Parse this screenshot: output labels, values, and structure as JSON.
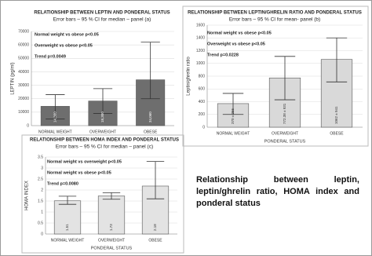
{
  "chart_data": [
    {
      "type": "bar",
      "title": "RELATIONSHIP BETWEEN LEPTIN AND PONDERAL STATUS",
      "subtitle": "Error bars – 95 % CI for median – panel (a)",
      "ylabel": "LEPTIN (pg/ml)",
      "annotations": [
        "Normal weight vs obese p<0.05",
        "Overweight vs obese p<0.05",
        "Trend p=0.0049"
      ],
      "categories": [
        "NORMAL WEIGHT",
        "OVERWEIGHT",
        "OBESE"
      ],
      "values": [
        14360,
        18300,
        34060
      ],
      "value_labels": [
        "14,360",
        "18,300",
        "34,060"
      ],
      "ci_low": [
        5000,
        9000,
        20000
      ],
      "ci_high": [
        23000,
        27500,
        62000
      ],
      "color": "#6e6e6e",
      "ylim": [
        0,
        70000
      ],
      "yticks": [
        0,
        10000,
        20000,
        30000,
        40000,
        50000,
        60000,
        70000
      ],
      "grid": true
    },
    {
      "type": "bar",
      "title": "RELATIONSHIP BETWEEN LEPTIN/GHRELIN RATIO AND PONDERAL STATUS",
      "subtitle": "Error bars – 95 % CI for mean- panel (b)",
      "ylabel": "Leptin/ghrelin ratio",
      "xlabel": "PONDERAL STATUS",
      "annotations": [
        "Normal weight vs obese p<0.05",
        "Overweight vs obese p<0.05",
        "Trend p=0.0228"
      ],
      "categories": [
        "NORMAL WEIGHT",
        "OVERWEIGHT",
        "OBESE"
      ],
      "values": [
        370,
        772.38,
        1062
      ],
      "value_labels": [
        "370 ± 255",
        "772.38 ± 931",
        "1062 ± 941"
      ],
      "ci_low": [
        200,
        430,
        710
      ],
      "ci_high": [
        530,
        1110,
        1400
      ],
      "color": "#d9d9d9",
      "ylim": [
        0,
        1600
      ],
      "yticks": [
        0,
        200,
        400,
        600,
        800,
        1000,
        1200,
        1400,
        1600
      ],
      "grid": true
    },
    {
      "type": "bar",
      "title": "RELATIONSHIP BETWEEN HOMA INDEX AND PONDERAL STATUS",
      "subtitle": "Error bars – 95 % CI for median – panel (c)",
      "ylabel": "HOMA INDEX",
      "xlabel": "PONDERAL STATUS",
      "annotations": [
        "Normal weight vs overweight p<0.05",
        "Normal weight vs obese p<0.05",
        "Trend p=0.0080"
      ],
      "categories": [
        "NORMAL WEIGHT",
        "OVERWEIGHT",
        "OBESE"
      ],
      "values": [
        1.51,
        1.73,
        2.18
      ],
      "ci_low": [
        1.35,
        1.58,
        1.6
      ],
      "ci_high": [
        1.72,
        1.88,
        3.3
      ],
      "color": "#e3e3e3",
      "ylim": [
        0,
        3.5
      ],
      "yticks": [
        0,
        0.5,
        1,
        1.5,
        2,
        2.5,
        3,
        3.5
      ],
      "grid": true
    }
  ],
  "caption": "Relationship between leptin, leptin/ghrelin ratio, HOMA index and ponderal status"
}
